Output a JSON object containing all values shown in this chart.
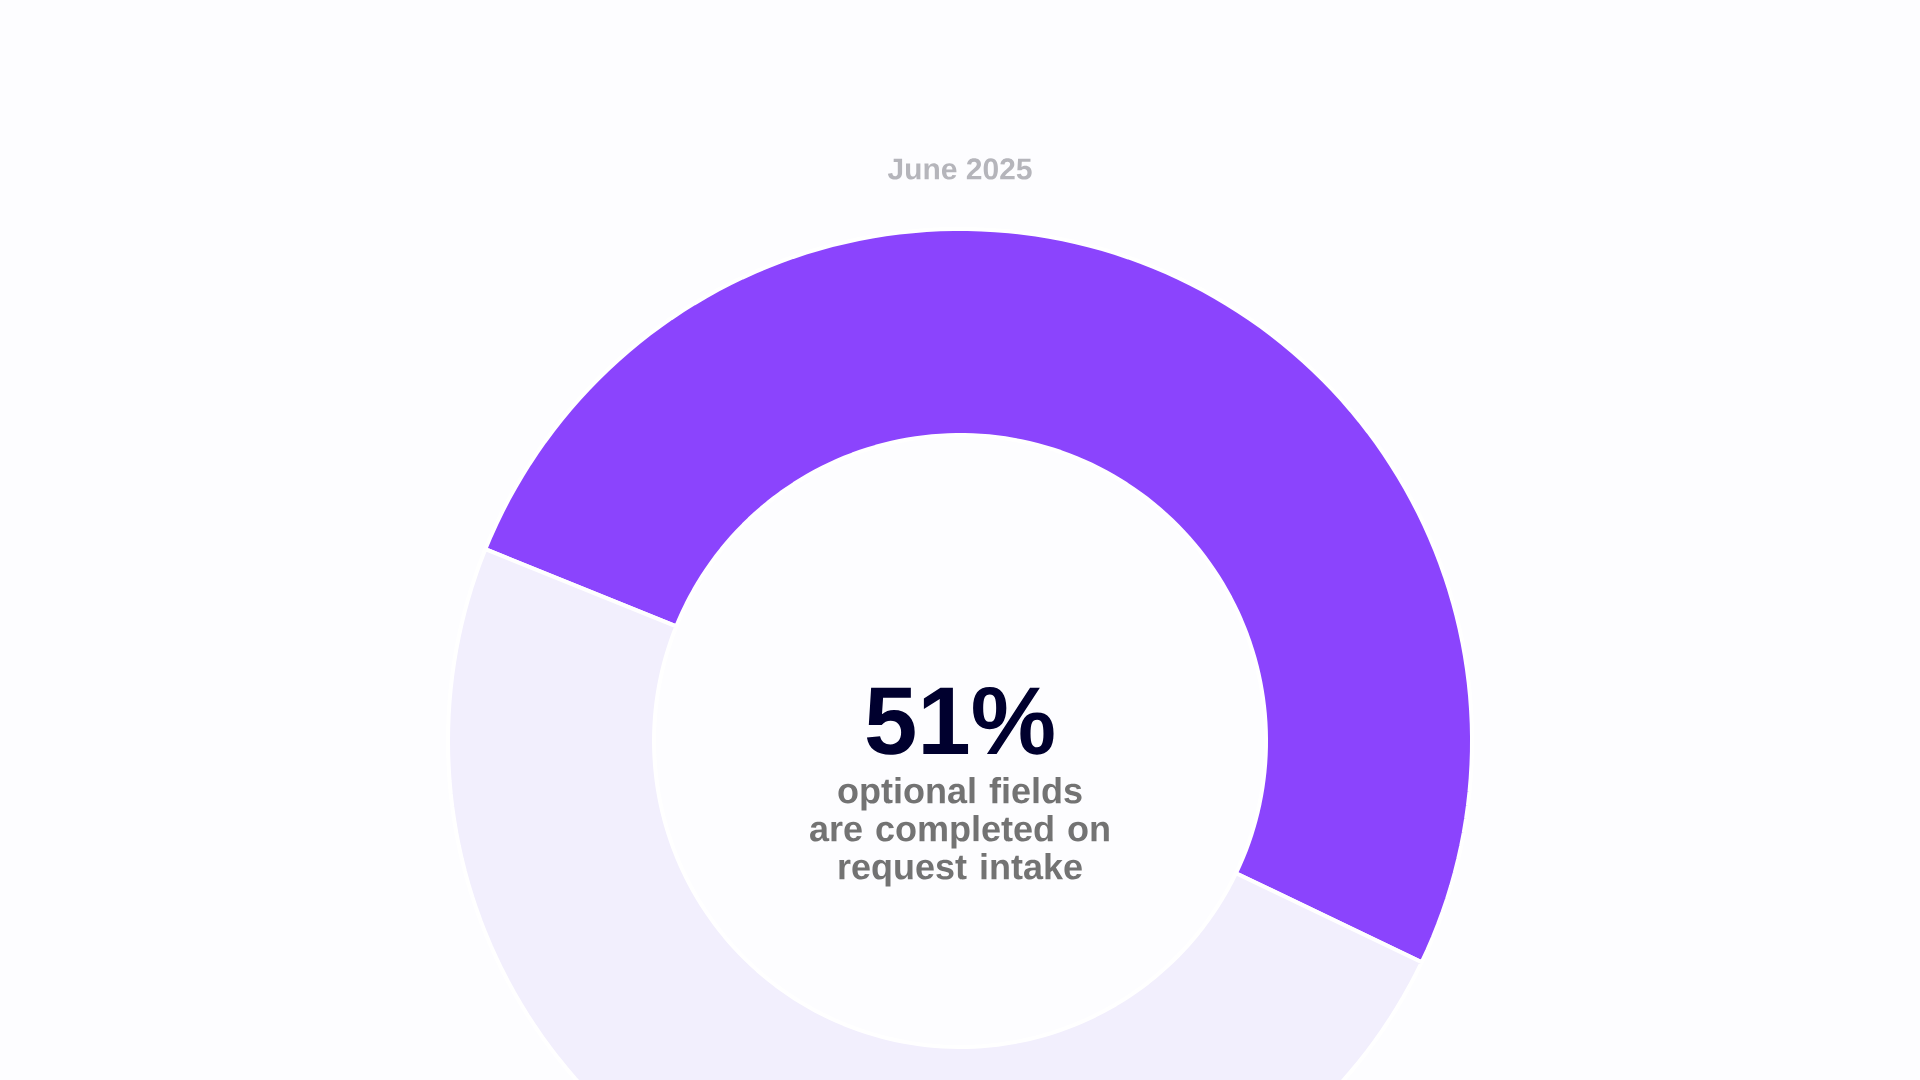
{
  "chart_data": {
    "type": "donut",
    "title": "June 2025",
    "categories": [
      null,
      null
    ],
    "values": [
      51,
      49
    ],
    "colors": [
      "#8b44fd",
      "#f2effd"
    ],
    "value_labels": [
      "51%",
      null
    ],
    "annotations": [
      "optional fields are completed on request intake"
    ]
  }
}
